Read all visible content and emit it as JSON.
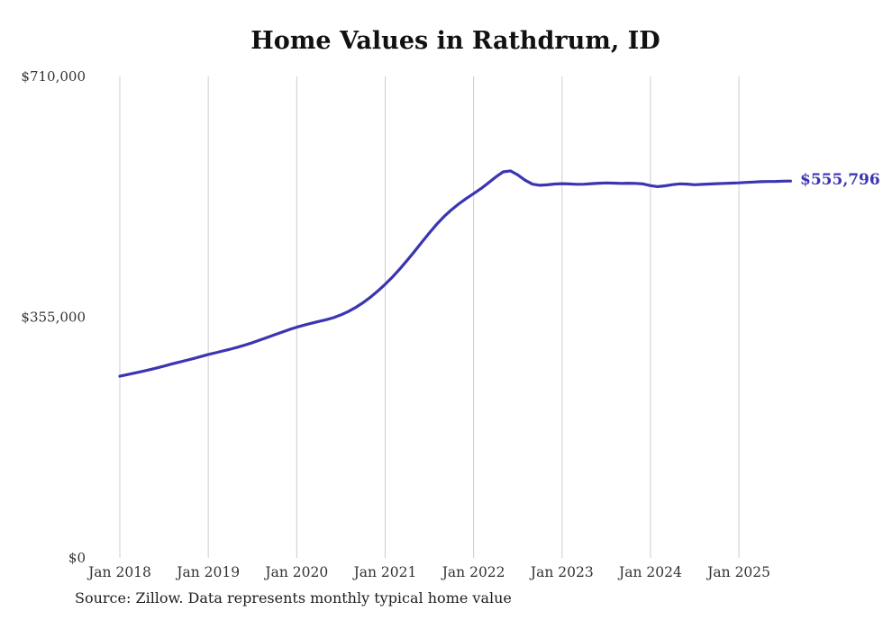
{
  "title": "Home Values in Rathdrum, ID",
  "source": "Source: Zillow. Data represents monthly typical home value",
  "end_label": "$555,796",
  "colors": {
    "line": "#3b35b1",
    "end_label": "#3b35b1",
    "grid": "#cccccc",
    "axis_text": "#333333",
    "title_text": "#111111"
  },
  "y_axis": {
    "ticks": [
      {
        "label": "$0",
        "value": 0
      },
      {
        "label": "$355,000",
        "value": 355000
      },
      {
        "label": "$710,000",
        "value": 710000
      }
    ]
  },
  "x_axis": {
    "labels": [
      "Jan 2018",
      "Jan 2019",
      "Jan 2020",
      "Jan 2021",
      "Jan 2022",
      "Jan 2023",
      "Jan 2024",
      "Jan 2025"
    ]
  },
  "chart_data": {
    "type": "line",
    "title": "Home Values in Rathdrum, ID",
    "xlabel": "",
    "ylabel": "",
    "ylim": [
      0,
      710000
    ],
    "grid": "vertical-only",
    "legend": "none",
    "final_value_label": "$555,796",
    "x": [
      "2018-01",
      "2018-02",
      "2018-03",
      "2018-04",
      "2018-05",
      "2018-06",
      "2018-07",
      "2018-08",
      "2018-09",
      "2018-10",
      "2018-11",
      "2018-12",
      "2019-01",
      "2019-02",
      "2019-03",
      "2019-04",
      "2019-05",
      "2019-06",
      "2019-07",
      "2019-08",
      "2019-09",
      "2019-10",
      "2019-11",
      "2019-12",
      "2020-01",
      "2020-02",
      "2020-03",
      "2020-04",
      "2020-05",
      "2020-06",
      "2020-07",
      "2020-08",
      "2020-09",
      "2020-10",
      "2020-11",
      "2020-12",
      "2021-01",
      "2021-02",
      "2021-03",
      "2021-04",
      "2021-05",
      "2021-06",
      "2021-07",
      "2021-08",
      "2021-09",
      "2021-10",
      "2021-11",
      "2021-12",
      "2022-01",
      "2022-02",
      "2022-03",
      "2022-04",
      "2022-05",
      "2022-06",
      "2022-07",
      "2022-08",
      "2022-09",
      "2022-10",
      "2022-11",
      "2022-12",
      "2023-01",
      "2023-02",
      "2023-03",
      "2023-04",
      "2023-05",
      "2023-06",
      "2023-07",
      "2023-08",
      "2023-09",
      "2023-10",
      "2023-11",
      "2023-12",
      "2024-01",
      "2024-02",
      "2024-03",
      "2024-04",
      "2024-05",
      "2024-06",
      "2024-07",
      "2024-08",
      "2024-09",
      "2024-10",
      "2024-11",
      "2024-12",
      "2025-01",
      "2025-02",
      "2025-03",
      "2025-04",
      "2025-05",
      "2025-06",
      "2025-07",
      "2025-08"
    ],
    "values": [
      268000,
      270300,
      272600,
      275000,
      277500,
      280200,
      283000,
      285800,
      288500,
      291300,
      294100,
      297000,
      300000,
      302600,
      305200,
      307900,
      310800,
      314000,
      317500,
      321300,
      325200,
      329100,
      333000,
      336800,
      340300,
      343300,
      346100,
      348700,
      351300,
      354400,
      358400,
      363400,
      369400,
      376400,
      384500,
      393600,
      403600,
      414500,
      426300,
      439000,
      452300,
      465900,
      479400,
      492100,
      503500,
      513500,
      522200,
      530000,
      537200,
      544700,
      553000,
      561800,
      569300,
      570800,
      564800,
      557000,
      551200,
      549500,
      550200,
      551400,
      552000,
      551600,
      551000,
      551200,
      551900,
      552600,
      553000,
      552700,
      552300,
      552600,
      552300,
      551500,
      549000,
      547500,
      548800,
      550500,
      551700,
      551300,
      550400,
      550900,
      551400,
      551900,
      552300,
      552800,
      553200,
      553800,
      554300,
      554800,
      555100,
      555300,
      555700,
      555796
    ]
  }
}
